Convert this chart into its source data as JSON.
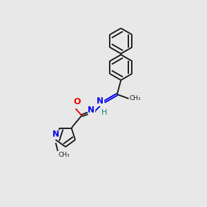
{
  "background_color": "#e8e8e8",
  "bond_color": "#1a1a1a",
  "atom_colors": {
    "N": "#0000ee",
    "O": "#ee0000",
    "H": "#008877",
    "C": "#1a1a1a"
  },
  "figsize": [
    3.0,
    3.0
  ],
  "dpi": 100,
  "lw": 1.4,
  "sep": 0.09,
  "r_hex": 0.62,
  "r_pyr": 0.5
}
